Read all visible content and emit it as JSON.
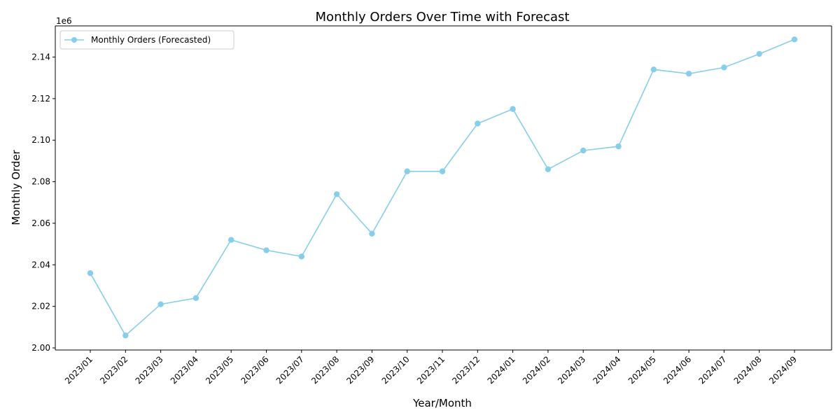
{
  "chart_data": {
    "type": "line",
    "title": "Monthly Orders Over Time with Forecast",
    "xlabel": "Year/Month",
    "ylabel": "Monthly Order",
    "y_offset_label": "1e6",
    "ylim": [
      1.999,
      2.155
    ],
    "yticks": [
      2.0,
      2.02,
      2.04,
      2.06,
      2.08,
      2.1,
      2.12,
      2.14
    ],
    "ytick_labels": [
      "2.00",
      "2.02",
      "2.04",
      "2.06",
      "2.08",
      "2.10",
      "2.12",
      "2.14"
    ],
    "categories": [
      "2023/01",
      "2023/02",
      "2023/03",
      "2023/04",
      "2023/05",
      "2023/06",
      "2023/07",
      "2023/08",
      "2023/09",
      "2023/10",
      "2023/11",
      "2023/12",
      "2024/01",
      "2024/02",
      "2024/03",
      "2024/04",
      "2024/05",
      "2024/06",
      "2024/07",
      "2024/08",
      "2024/09"
    ],
    "series": [
      {
        "name": "Monthly Orders (Forecasted)",
        "color": "#87ceeb",
        "marker": "circle",
        "values": [
          2.036,
          2.006,
          2.021,
          2.024,
          2.052,
          2.047,
          2.044,
          2.074,
          2.055,
          2.085,
          2.085,
          2.108,
          2.115,
          2.086,
          2.095,
          2.097,
          2.134,
          2.132,
          2.135,
          2.1415,
          2.1485
        ]
      }
    ],
    "legend_position": "top-left",
    "grid": false
  }
}
